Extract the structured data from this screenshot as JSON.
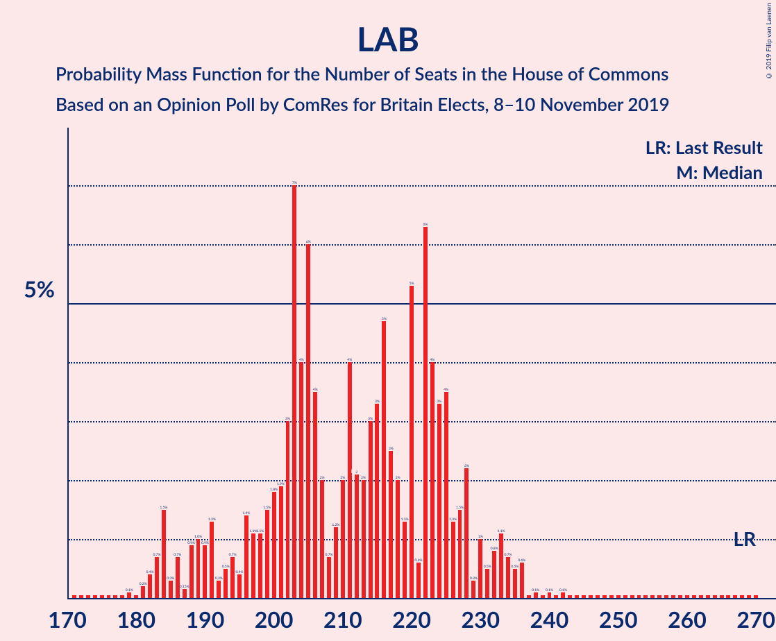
{
  "title": "LAB",
  "subtitle1": "Probability Mass Function for the Number of Seats in the House of Commons",
  "subtitle2": "Based on an Opinion Poll by ComRes for Britain Elects, 8–10 November 2019",
  "copyright": "© 2019 Filip van Laenen",
  "legend": {
    "lr": "LR: Last Result",
    "m": "M: Median"
  },
  "annotations": {
    "lr_label": "LR",
    "lr_x": 262,
    "median_x": 212
  },
  "chart": {
    "type": "bar",
    "background_color": "#fce8e8",
    "bar_color": "#ed2024",
    "text_color": "#0a2a6e",
    "grid_color": "#0a2a6e",
    "xlim": [
      170,
      272
    ],
    "ylim": [
      0,
      8
    ],
    "x_ticks": [
      170,
      180,
      190,
      200,
      210,
      220,
      230,
      240,
      250,
      260,
      270
    ],
    "y_major_tick": 5,
    "y_minor_ticks": [
      1,
      2,
      3,
      4,
      6,
      7
    ],
    "y_tick_label": "5%",
    "bar_width_ratio": 0.6,
    "bars": [
      {
        "x": 171,
        "y": 0.05,
        "label": ""
      },
      {
        "x": 172,
        "y": 0.05,
        "label": ""
      },
      {
        "x": 173,
        "y": 0.05,
        "label": ""
      },
      {
        "x": 174,
        "y": 0.05,
        "label": ""
      },
      {
        "x": 175,
        "y": 0.05,
        "label": ""
      },
      {
        "x": 176,
        "y": 0.05,
        "label": ""
      },
      {
        "x": 177,
        "y": 0.05,
        "label": ""
      },
      {
        "x": 178,
        "y": 0.05,
        "label": ""
      },
      {
        "x": 179,
        "y": 0.1,
        "label": "0.1%"
      },
      {
        "x": 180,
        "y": 0.05,
        "label": ""
      },
      {
        "x": 181,
        "y": 0.2,
        "label": "0.2%"
      },
      {
        "x": 182,
        "y": 0.4,
        "label": "0.4%"
      },
      {
        "x": 183,
        "y": 0.7,
        "label": "0.7%"
      },
      {
        "x": 184,
        "y": 1.5,
        "label": "1.5%"
      },
      {
        "x": 185,
        "y": 0.3,
        "label": "0.3%"
      },
      {
        "x": 186,
        "y": 0.7,
        "label": "0.7%"
      },
      {
        "x": 187,
        "y": 0.15,
        "label": "0.15%"
      },
      {
        "x": 188,
        "y": 0.9,
        "label": "0.9%"
      },
      {
        "x": 189,
        "y": 1.0,
        "label": "1.0%"
      },
      {
        "x": 190,
        "y": 0.9,
        "label": "0.9%"
      },
      {
        "x": 191,
        "y": 1.3,
        "label": "1.3%"
      },
      {
        "x": 192,
        "y": 0.3,
        "label": "0.3%"
      },
      {
        "x": 193,
        "y": 0.5,
        "label": "0.5%"
      },
      {
        "x": 194,
        "y": 0.7,
        "label": "0.7%"
      },
      {
        "x": 195,
        "y": 0.4,
        "label": "0.4%"
      },
      {
        "x": 196,
        "y": 1.4,
        "label": "1.4%"
      },
      {
        "x": 197,
        "y": 1.1,
        "label": "1.1%"
      },
      {
        "x": 198,
        "y": 1.1,
        "label": "1.1%"
      },
      {
        "x": 199,
        "y": 1.5,
        "label": "1.5%"
      },
      {
        "x": 200,
        "y": 1.8,
        "label": "1.8%"
      },
      {
        "x": 201,
        "y": 1.9,
        "label": "1.9%"
      },
      {
        "x": 202,
        "y": 3.0,
        "label": "3%"
      },
      {
        "x": 203,
        "y": 7.0,
        "label": "7%"
      },
      {
        "x": 204,
        "y": 4.0,
        "label": "4%"
      },
      {
        "x": 205,
        "y": 6.0,
        "label": "6%"
      },
      {
        "x": 206,
        "y": 3.5,
        "label": "4%"
      },
      {
        "x": 207,
        "y": 2.0,
        "label": "2%"
      },
      {
        "x": 208,
        "y": 0.7,
        "label": "0.7%"
      },
      {
        "x": 209,
        "y": 1.2,
        "label": "1.2%"
      },
      {
        "x": 210,
        "y": 2.0,
        "label": "2%"
      },
      {
        "x": 211,
        "y": 4.0,
        "label": "4%"
      },
      {
        "x": 212,
        "y": 2.1,
        "label": "2"
      },
      {
        "x": 213,
        "y": 2.0,
        "label": "2%"
      },
      {
        "x": 214,
        "y": 3.0,
        "label": "3%"
      },
      {
        "x": 215,
        "y": 3.3,
        "label": "3%"
      },
      {
        "x": 216,
        "y": 4.7,
        "label": "5%"
      },
      {
        "x": 217,
        "y": 2.5,
        "label": "3%"
      },
      {
        "x": 218,
        "y": 2.0,
        "label": "2%"
      },
      {
        "x": 219,
        "y": 1.3,
        "label": "1.3%"
      },
      {
        "x": 220,
        "y": 5.3,
        "label": "5%"
      },
      {
        "x": 221,
        "y": 0.6,
        "label": "0.6%"
      },
      {
        "x": 222,
        "y": 6.3,
        "label": "6%"
      },
      {
        "x": 223,
        "y": 4.0,
        "label": "4%"
      },
      {
        "x": 224,
        "y": 3.3,
        "label": "3%"
      },
      {
        "x": 225,
        "y": 3.5,
        "label": "4%"
      },
      {
        "x": 226,
        "y": 1.3,
        "label": "1.3%"
      },
      {
        "x": 227,
        "y": 1.5,
        "label": "1.5%"
      },
      {
        "x": 228,
        "y": 2.2,
        "label": "2%"
      },
      {
        "x": 229,
        "y": 0.3,
        "label": "0.3%"
      },
      {
        "x": 230,
        "y": 1.0,
        "label": "1%"
      },
      {
        "x": 231,
        "y": 0.5,
        "label": "0.5%"
      },
      {
        "x": 232,
        "y": 0.8,
        "label": "0.8%"
      },
      {
        "x": 233,
        "y": 1.1,
        "label": "1.1%"
      },
      {
        "x": 234,
        "y": 0.7,
        "label": "0.7%"
      },
      {
        "x": 235,
        "y": 0.5,
        "label": "0.5%"
      },
      {
        "x": 236,
        "y": 0.6,
        "label": "0.6%"
      },
      {
        "x": 237,
        "y": 0.05,
        "label": ""
      },
      {
        "x": 238,
        "y": 0.1,
        "label": "0.1%"
      },
      {
        "x": 239,
        "y": 0.05,
        "label": ""
      },
      {
        "x": 240,
        "y": 0.1,
        "label": "0.1%"
      },
      {
        "x": 241,
        "y": 0.05,
        "label": ""
      },
      {
        "x": 242,
        "y": 0.1,
        "label": "0.1%"
      },
      {
        "x": 243,
        "y": 0.05,
        "label": ""
      },
      {
        "x": 244,
        "y": 0.05,
        "label": ""
      },
      {
        "x": 245,
        "y": 0.05,
        "label": ""
      },
      {
        "x": 246,
        "y": 0.05,
        "label": ""
      },
      {
        "x": 247,
        "y": 0.05,
        "label": ""
      },
      {
        "x": 248,
        "y": 0.05,
        "label": ""
      },
      {
        "x": 249,
        "y": 0.05,
        "label": ""
      },
      {
        "x": 250,
        "y": 0.05,
        "label": ""
      },
      {
        "x": 251,
        "y": 0.05,
        "label": ""
      },
      {
        "x": 252,
        "y": 0.05,
        "label": ""
      },
      {
        "x": 253,
        "y": 0.05,
        "label": ""
      },
      {
        "x": 254,
        "y": 0.05,
        "label": ""
      },
      {
        "x": 255,
        "y": 0.05,
        "label": ""
      },
      {
        "x": 256,
        "y": 0.05,
        "label": ""
      },
      {
        "x": 257,
        "y": 0.05,
        "label": ""
      },
      {
        "x": 258,
        "y": 0.05,
        "label": ""
      },
      {
        "x": 259,
        "y": 0.05,
        "label": ""
      },
      {
        "x": 260,
        "y": 0.05,
        "label": ""
      },
      {
        "x": 261,
        "y": 0.05,
        "label": ""
      },
      {
        "x": 262,
        "y": 0.05,
        "label": ""
      },
      {
        "x": 263,
        "y": 0.05,
        "label": ""
      },
      {
        "x": 264,
        "y": 0.05,
        "label": ""
      },
      {
        "x": 265,
        "y": 0.05,
        "label": ""
      },
      {
        "x": 266,
        "y": 0.05,
        "label": ""
      },
      {
        "x": 267,
        "y": 0.05,
        "label": ""
      },
      {
        "x": 268,
        "y": 0.05,
        "label": ""
      },
      {
        "x": 269,
        "y": 0.05,
        "label": ""
      },
      {
        "x": 270,
        "y": 0.05,
        "label": ""
      }
    ]
  }
}
